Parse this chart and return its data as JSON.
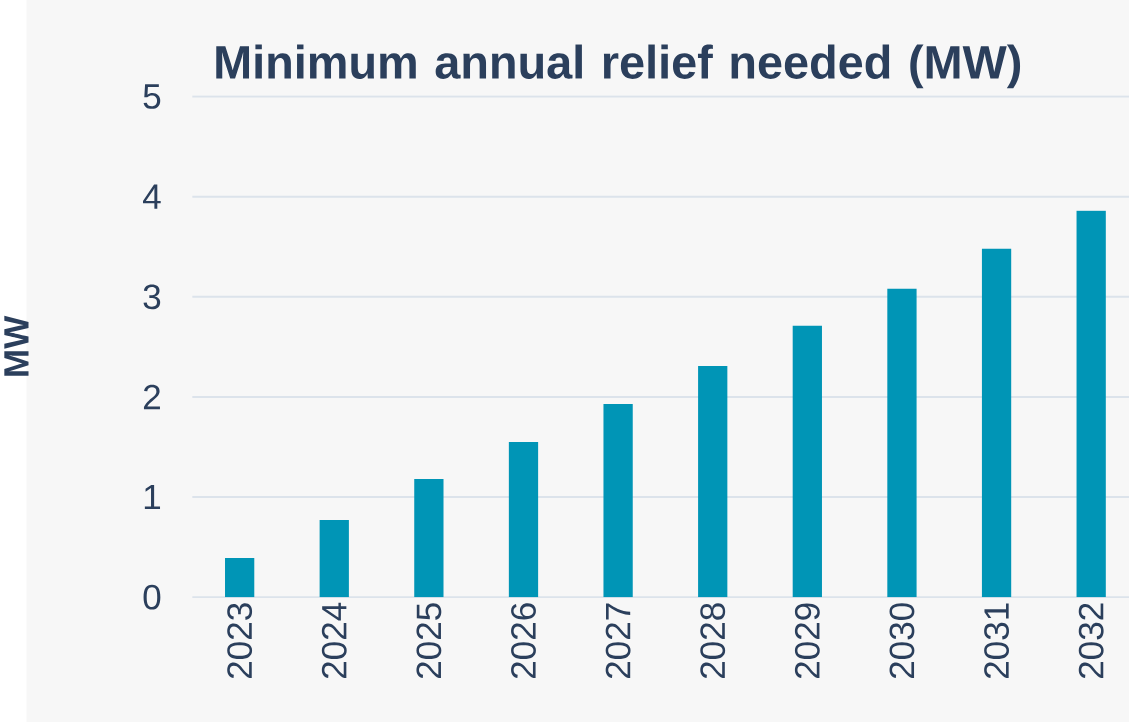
{
  "chart_data": {
    "type": "bar",
    "title": "Minimum annual relief needed (MW)",
    "ylabel": "MW",
    "categories": [
      "2023",
      "2024",
      "2025",
      "2026",
      "2027",
      "2028",
      "2029",
      "2030",
      "2031",
      "2032"
    ],
    "values": [
      0.39,
      0.77,
      1.18,
      1.55,
      1.93,
      2.31,
      2.71,
      3.08,
      3.48,
      3.86
    ],
    "color": "#0095b6",
    "ylim": [
      0,
      5
    ],
    "yticks": [
      0,
      1,
      2,
      3,
      4,
      5
    ],
    "grid": "y"
  }
}
